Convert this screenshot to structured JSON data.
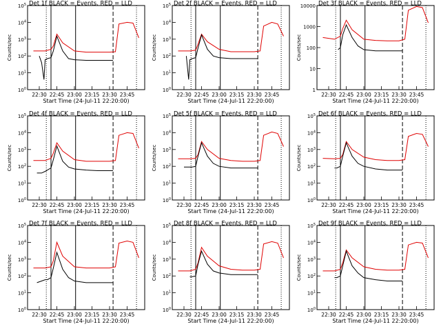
{
  "colors": {
    "events": "#000000",
    "lld": "#e00000",
    "axes": "#000000"
  },
  "shared": {
    "xlabel": "Start Time (24-Jul-11 22:20:00)",
    "ylabel": "Counts/sec",
    "title_suffix": "BLACK = Events, RED = LLD",
    "x_tick_labels": [
      "22:30",
      "22:45",
      "23:00",
      "23:15",
      "23:30",
      "23:45"
    ],
    "x_tick_minutes": [
      10,
      25,
      40,
      55,
      70,
      85
    ],
    "x_range_minutes": [
      0,
      100
    ],
    "vlines": [
      {
        "style": "dotted",
        "minute": 16
      },
      {
        "style": "solid",
        "minute": 20
      },
      {
        "style": "solid",
        "minute": 41
      },
      {
        "style": "dashed",
        "minute": 73
      },
      {
        "style": "dotted",
        "minute": 93
      }
    ]
  },
  "chart_data": [
    {
      "type": "line",
      "title": "Det 1f",
      "yscale": "log",
      "ylim": [
        1,
        100000
      ],
      "y_tick_labels": [
        "10^0",
        "10^1",
        "10^2",
        "10^3",
        "10^4",
        "10^5"
      ],
      "series": [
        {
          "color": "lld",
          "x": [
            5,
            15,
            20,
            22,
            25,
            30,
            40,
            50,
            60,
            70,
            75,
            78,
            85,
            90,
            95
          ],
          "y": [
            200,
            200,
            250,
            400,
            2000,
            600,
            200,
            170,
            170,
            170,
            180,
            8000,
            10000,
            9000,
            1200
          ]
        },
        {
          "color": "events",
          "x": [
            10,
            12,
            14,
            15,
            17,
            20,
            22,
            25,
            30,
            35,
            40,
            50,
            60,
            70,
            73
          ],
          "y": [
            100,
            40,
            4,
            60,
            70,
            80,
            200,
            1500,
            200,
            70,
            60,
            55,
            55,
            55,
            55
          ]
        }
      ]
    },
    {
      "type": "line",
      "title": "Det 2f",
      "yscale": "log",
      "ylim": [
        1,
        100000
      ],
      "y_tick_labels": [
        "10^0",
        "10^1",
        "10^2",
        "10^3",
        "10^4",
        "10^5"
      ],
      "series": [
        {
          "color": "lld",
          "x": [
            5,
            15,
            20,
            22,
            25,
            30,
            40,
            50,
            60,
            70,
            75,
            78,
            85,
            90,
            95
          ],
          "y": [
            200,
            200,
            220,
            500,
            2000,
            700,
            250,
            180,
            180,
            180,
            200,
            6000,
            10000,
            8000,
            1500
          ]
        },
        {
          "color": "events",
          "x": [
            12,
            14,
            15,
            17,
            20,
            22,
            25,
            30,
            35,
            40,
            50,
            60,
            70,
            73
          ],
          "y": [
            100,
            4,
            60,
            70,
            80,
            300,
            1800,
            250,
            100,
            80,
            70,
            70,
            70,
            70
          ]
        }
      ]
    },
    {
      "type": "line",
      "title": "Det 3f",
      "yscale": "log",
      "ylim": [
        1,
        10000
      ],
      "y_tick_labels": [
        "1",
        "10",
        "100",
        "1000",
        "10000"
      ],
      "series": [
        {
          "color": "lld",
          "x": [
            5,
            15,
            20,
            22,
            25,
            30,
            40,
            50,
            60,
            70,
            75,
            78,
            85,
            90,
            95
          ],
          "y": [
            300,
            250,
            350,
            800,
            2000,
            700,
            250,
            220,
            210,
            210,
            250,
            6000,
            9000,
            8000,
            1500
          ]
        },
        {
          "color": "events",
          "x": [
            18,
            20,
            22,
            25,
            30,
            35,
            40,
            50,
            60,
            70,
            73
          ],
          "y": [
            80,
            100,
            400,
            1200,
            300,
            120,
            80,
            70,
            70,
            70,
            70
          ]
        }
      ]
    },
    {
      "type": "line",
      "title": "Det 4f",
      "yscale": "log",
      "ylim": [
        1,
        100000
      ],
      "y_tick_labels": [
        "10^0",
        "10^1",
        "10^2",
        "10^3",
        "10^4",
        "10^5"
      ],
      "series": [
        {
          "color": "lld",
          "x": [
            5,
            15,
            20,
            22,
            25,
            30,
            40,
            50,
            60,
            70,
            75,
            78,
            85,
            90,
            95
          ],
          "y": [
            220,
            220,
            300,
            600,
            2500,
            800,
            250,
            200,
            200,
            200,
            220,
            7000,
            10000,
            9000,
            1200
          ]
        },
        {
          "color": "events",
          "x": [
            8,
            12,
            15,
            17,
            20,
            22,
            25,
            30,
            35,
            40,
            50,
            60,
            70,
            73
          ],
          "y": [
            40,
            40,
            50,
            60,
            80,
            250,
            1600,
            200,
            90,
            70,
            60,
            55,
            55,
            55
          ]
        }
      ]
    },
    {
      "type": "line",
      "title": "Det 5f",
      "yscale": "log",
      "ylim": [
        1,
        100000
      ],
      "y_tick_labels": [
        "10^0",
        "10^1",
        "10^2",
        "10^3",
        "10^4",
        "10^5"
      ],
      "series": [
        {
          "color": "lld",
          "x": [
            5,
            15,
            20,
            22,
            25,
            30,
            40,
            50,
            60,
            70,
            75,
            78,
            85,
            90,
            95
          ],
          "y": [
            280,
            280,
            300,
            500,
            3000,
            1000,
            300,
            220,
            200,
            200,
            220,
            7000,
            11000,
            9000,
            1500
          ]
        },
        {
          "color": "events",
          "x": [
            10,
            15,
            17,
            20,
            22,
            25,
            30,
            35,
            40,
            50,
            60,
            70,
            73
          ],
          "y": [
            90,
            90,
            90,
            100,
            400,
            2500,
            400,
            150,
            100,
            80,
            80,
            80,
            80
          ]
        }
      ]
    },
    {
      "type": "line",
      "title": "Det 6f",
      "yscale": "log",
      "ylim": [
        1,
        100000
      ],
      "y_tick_labels": [
        "10^0",
        "10^1",
        "10^2",
        "10^3",
        "10^4",
        "10^5"
      ],
      "series": [
        {
          "color": "lld",
          "x": [
            5,
            15,
            20,
            22,
            25,
            30,
            40,
            50,
            60,
            70,
            75,
            78,
            85,
            90,
            95
          ],
          "y": [
            300,
            280,
            300,
            500,
            3000,
            1000,
            350,
            250,
            220,
            220,
            250,
            6000,
            9000,
            8000,
            1500
          ]
        },
        {
          "color": "events",
          "x": [
            15,
            17,
            20,
            22,
            25,
            30,
            35,
            40,
            50,
            60,
            70,
            73
          ],
          "y": [
            80,
            80,
            100,
            400,
            2500,
            400,
            150,
            100,
            70,
            60,
            60,
            60
          ]
        }
      ]
    },
    {
      "type": "line",
      "title": "Det 7f",
      "yscale": "log",
      "ylim": [
        1,
        100000
      ],
      "y_tick_labels": [
        "10^0",
        "10^1",
        "10^2",
        "10^3",
        "10^4",
        "10^5"
      ],
      "series": [
        {
          "color": "lld",
          "x": [
            5,
            15,
            20,
            22,
            25,
            30,
            40,
            50,
            60,
            70,
            75,
            78,
            85,
            90,
            95
          ],
          "y": [
            300,
            300,
            350,
            800,
            10000,
            1500,
            350,
            300,
            300,
            300,
            350,
            9000,
            12000,
            10000,
            1200
          ]
        },
        {
          "color": "events",
          "x": [
            8,
            12,
            15,
            17,
            20,
            22,
            25,
            30,
            35,
            40,
            50,
            60,
            70,
            73
          ],
          "y": [
            40,
            50,
            60,
            60,
            80,
            300,
            2500,
            250,
            80,
            50,
            40,
            40,
            40,
            40
          ]
        }
      ]
    },
    {
      "type": "line",
      "title": "Det 8f",
      "yscale": "log",
      "ylim": [
        1,
        100000
      ],
      "y_tick_labels": [
        "10^0",
        "10^1",
        "10^2",
        "10^3",
        "10^4",
        "10^5"
      ],
      "series": [
        {
          "color": "lld",
          "x": [
            5,
            15,
            20,
            22,
            25,
            30,
            40,
            50,
            60,
            70,
            75,
            78,
            85,
            90,
            95
          ],
          "y": [
            200,
            200,
            250,
            600,
            5000,
            1500,
            400,
            250,
            220,
            220,
            250,
            8000,
            11000,
            9000,
            1200
          ]
        },
        {
          "color": "events",
          "x": [
            15,
            17,
            20,
            22,
            25,
            30,
            35,
            40,
            50,
            60,
            70,
            73
          ],
          "y": [
            90,
            90,
            100,
            500,
            3000,
            500,
            200,
            150,
            120,
            120,
            120,
            120
          ]
        }
      ]
    },
    {
      "type": "line",
      "title": "Det 9f",
      "yscale": "log",
      "ylim": [
        1,
        100000
      ],
      "y_tick_labels": [
        "10^0",
        "10^1",
        "10^2",
        "10^3",
        "10^4",
        "10^5"
      ],
      "series": [
        {
          "color": "lld",
          "x": [
            5,
            15,
            20,
            22,
            25,
            30,
            40,
            50,
            60,
            70,
            75,
            78,
            85,
            90,
            95
          ],
          "y": [
            200,
            200,
            250,
            600,
            3500,
            1200,
            350,
            250,
            220,
            220,
            250,
            7000,
            10000,
            9000,
            1200
          ]
        },
        {
          "color": "events",
          "x": [
            15,
            17,
            20,
            22,
            25,
            30,
            35,
            40,
            50,
            60,
            70,
            73
          ],
          "y": [
            80,
            80,
            100,
            400,
            3000,
            400,
            150,
            80,
            60,
            50,
            50,
            50
          ]
        }
      ]
    }
  ]
}
